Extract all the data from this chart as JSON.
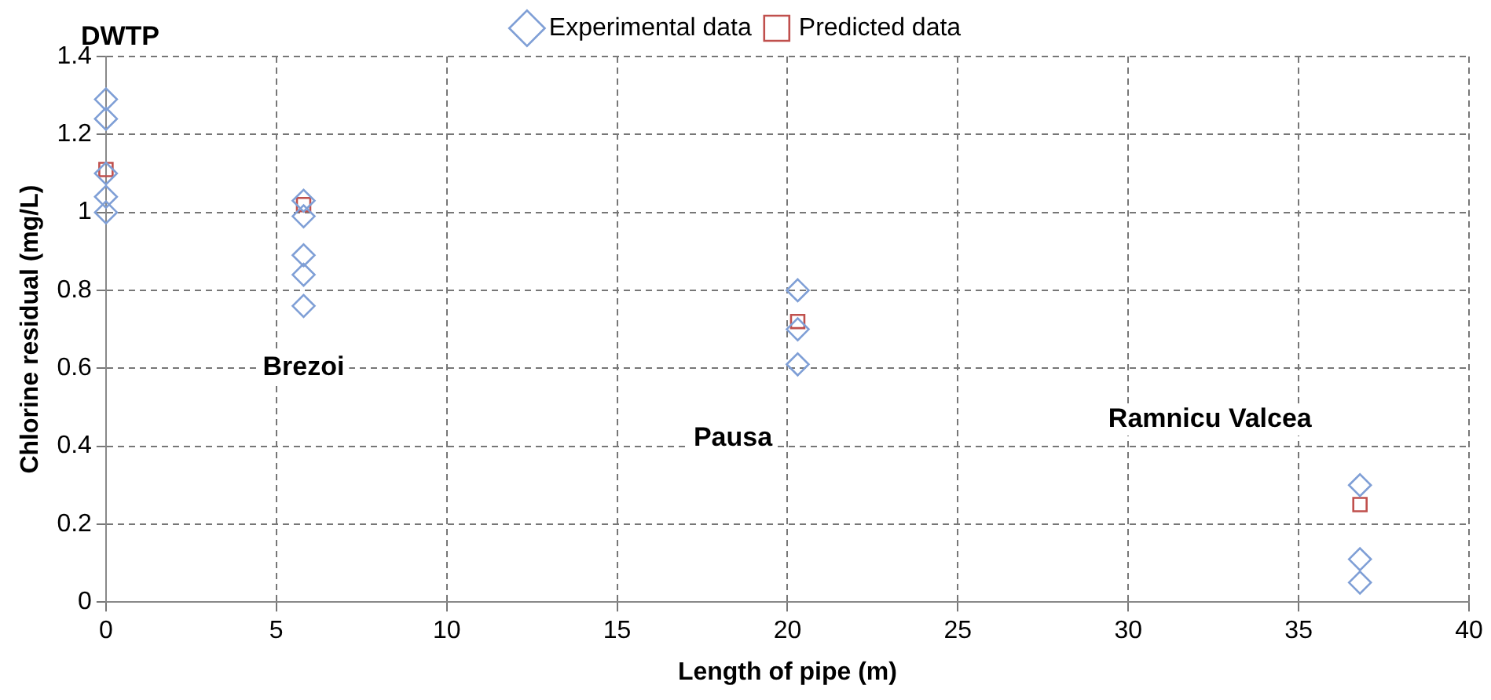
{
  "chart_data": {
    "type": "scatter",
    "xlabel": "Length of pipe (m)",
    "ylabel": "Chlorine residual (mg/L)",
    "xlim": [
      0,
      40
    ],
    "xticks": [
      0,
      5,
      10,
      15,
      20,
      25,
      30,
      35,
      40
    ],
    "ylim": [
      0,
      1.4
    ],
    "yticks": [
      0,
      0.2,
      0.4,
      0.6,
      0.8,
      1,
      1.2,
      1.4
    ],
    "grid": true,
    "legend": "top",
    "line_style": "dashed",
    "series": [
      {
        "name": "Experimental data",
        "color": "#7f9fd6",
        "marker": "diamond",
        "x": [
          0,
          0,
          0,
          0,
          0,
          5.8,
          5.8,
          5.8,
          5.8,
          5.8,
          20.3,
          20.3,
          20.3,
          36.8,
          36.8,
          36.8
        ],
        "values": [
          1.29,
          1.24,
          1.1,
          1.04,
          1.0,
          1.03,
          0.99,
          0.89,
          0.84,
          0.76,
          0.8,
          0.7,
          0.61,
          0.3,
          0.11,
          0.05
        ]
      },
      {
        "name": "Predicted data",
        "color": "#c0504d",
        "marker": "square",
        "x": [
          0,
          5.8,
          20.3,
          36.8
        ],
        "values": [
          1.11,
          1.02,
          0.72,
          0.25
        ]
      }
    ],
    "annotations": [
      "DWTP",
      "Brezoi",
      "Pausa",
      "Ramnicu Valcea"
    ]
  }
}
